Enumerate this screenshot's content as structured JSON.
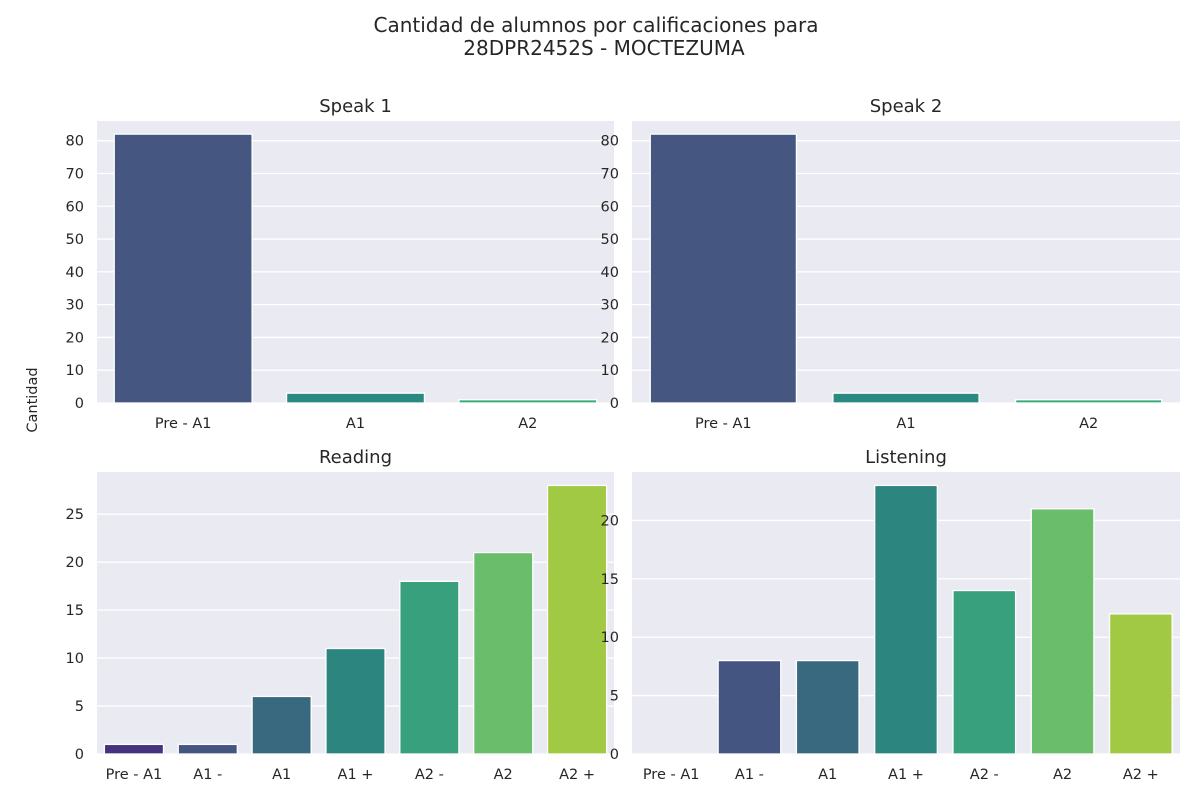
{
  "figure": {
    "title_line1": "Cantidad de alumnos por calificaciones para",
    "title_line2": "28DPR2452S - MOCTEZUMA",
    "ylabel": "Cantidad"
  },
  "chart_data": [
    {
      "type": "bar",
      "title": "Speak 1",
      "categories": [
        "Pre - A1",
        "A1",
        "A2"
      ],
      "values": [
        82,
        3,
        1
      ],
      "colors": [
        "#455781",
        "#2a8a82",
        "#35ad7a"
      ],
      "ylim": [
        0,
        86
      ],
      "yticks": [
        0,
        10,
        20,
        30,
        40,
        50,
        60,
        70,
        80
      ],
      "grid": true
    },
    {
      "type": "bar",
      "title": "Speak 2",
      "categories": [
        "Pre - A1",
        "A1",
        "A2"
      ],
      "values": [
        82,
        3,
        1
      ],
      "colors": [
        "#455781",
        "#2a8a82",
        "#35ad7a"
      ],
      "ylim": [
        0,
        86
      ],
      "yticks": [
        0,
        10,
        20,
        30,
        40,
        50,
        60,
        70,
        80
      ],
      "grid": true
    },
    {
      "type": "bar",
      "title": "Reading",
      "categories": [
        "Pre - A1",
        "A1 -",
        "A1",
        "A1 +",
        "A2 -",
        "A2",
        "A2 +"
      ],
      "values": [
        1,
        1,
        6,
        11,
        18,
        21,
        28
      ],
      "colors": [
        "#46327e",
        "#445581",
        "#38697f",
        "#2d8580",
        "#39a07d",
        "#6abd6a",
        "#a1c944"
      ],
      "ylim": [
        0,
        29.4
      ],
      "yticks": [
        0,
        5,
        10,
        15,
        20,
        25
      ],
      "grid": true
    },
    {
      "type": "bar",
      "title": "Listening",
      "categories": [
        "Pre - A1",
        "A1 -",
        "A1",
        "A1 +",
        "A2 -",
        "A2",
        "A2 +"
      ],
      "values": [
        0,
        8,
        8,
        23,
        14,
        21,
        12
      ],
      "colors": [
        "#46327e",
        "#445581",
        "#38697f",
        "#2d8580",
        "#39a07d",
        "#6abd6a",
        "#a1c944"
      ],
      "ylim": [
        0,
        24.15
      ],
      "yticks": [
        0,
        5,
        10,
        15,
        20
      ],
      "grid": true
    }
  ]
}
